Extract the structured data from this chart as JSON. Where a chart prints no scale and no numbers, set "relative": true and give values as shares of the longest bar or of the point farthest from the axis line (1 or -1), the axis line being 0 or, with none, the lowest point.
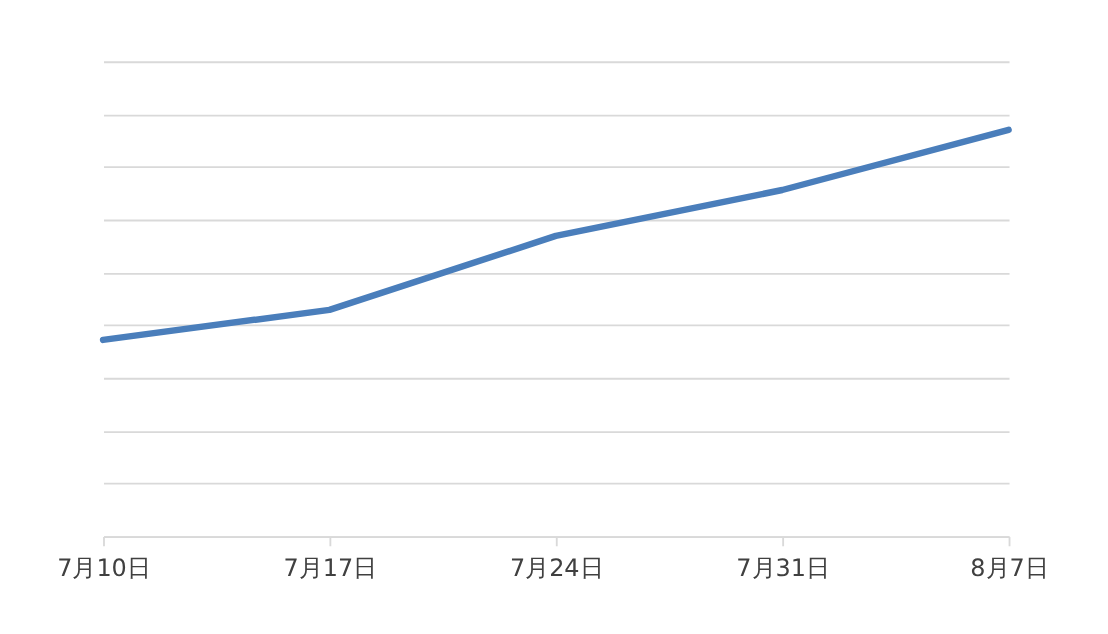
{
  "chart_data": {
    "type": "line",
    "relative": true,
    "categories": [
      "7月10日",
      "7月17日",
      "7月24日",
      "7月31日",
      "8月7日"
    ],
    "series": [
      {
        "color": "#4a7ebb",
        "values": [
          0.483,
          0.557,
          0.739,
          0.852,
          1.0
        ]
      }
    ],
    "grid": "y",
    "marker": "none",
    "line_style": "solid"
  }
}
